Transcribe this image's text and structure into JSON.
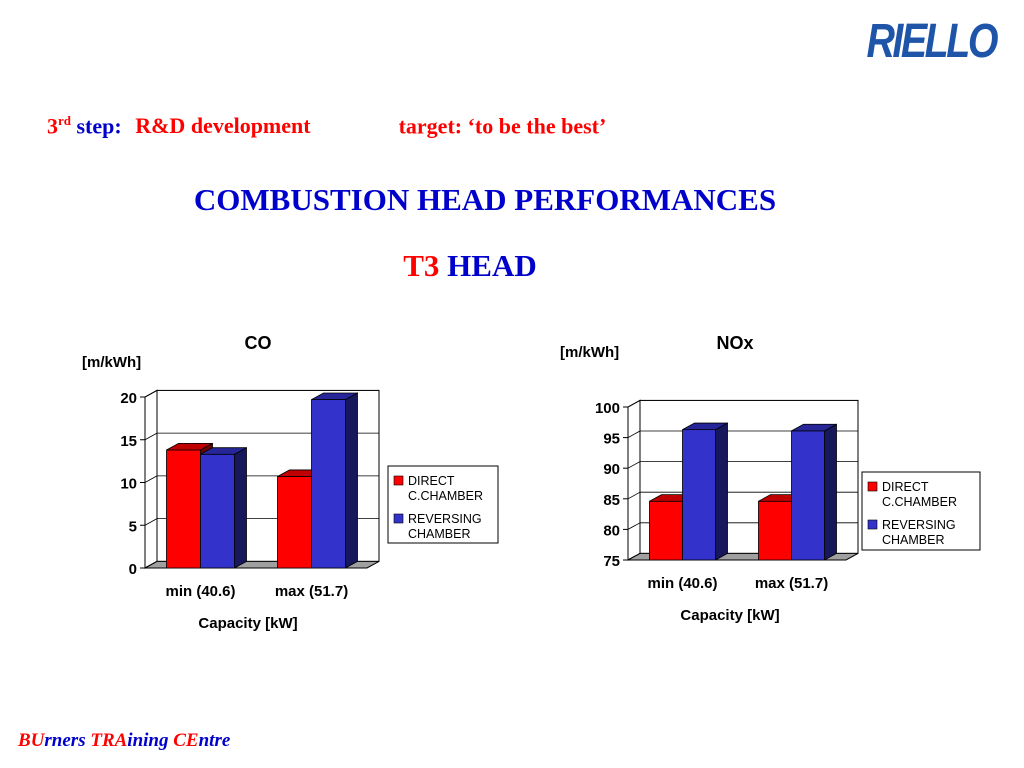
{
  "colors": {
    "red": "#ff0000",
    "navy": "#0000cc",
    "blue": "#3333cc",
    "logo": "#1f55a8",
    "direct": "#ff0000",
    "reversing": "#3333cc"
  },
  "logo": {
    "text": "RIELLO"
  },
  "header": {
    "step_number": "3",
    "step_suffix": "rd",
    "step_label": "step:",
    "step_title": "R&D development",
    "target": "target: ‘to be the best’"
  },
  "title": {
    "main": "COMBUSTION HEAD PERFORMANCES",
    "head_code": "T3",
    "head_word": "HEAD"
  },
  "footer": {
    "part1_caps": "BU",
    "part1_rest": "rners ",
    "part2_caps": "TRA",
    "part2_rest": "ining ",
    "part3_caps": "CE",
    "part3_rest": "ntre"
  },
  "chart_data": [
    {
      "type": "bar",
      "title": "CO",
      "ylabel": "[m/kWh]",
      "xlabel": "Capacity [kW]",
      "categories": [
        "min (40.6)",
        "max (51.7)"
      ],
      "ylim": [
        0,
        20
      ],
      "yticks": [
        0,
        5,
        10,
        15,
        20
      ],
      "grid": true,
      "legend_position": "right",
      "series": [
        {
          "name": "DIRECT C.CHAMBER",
          "label_lines": [
            "DIRECT",
            "C.CHAMBER"
          ],
          "color": "#ff0000",
          "values": [
            13.8,
            10.7
          ]
        },
        {
          "name": "REVERSING CHAMBER",
          "label_lines": [
            "REVERSING",
            "CHAMBER"
          ],
          "color": "#3333cc",
          "values": [
            13.3,
            19.7
          ]
        }
      ]
    },
    {
      "type": "bar",
      "title": "NOx",
      "ylabel": "[m/kWh]",
      "xlabel": "Capacity [kW]",
      "categories": [
        "min (40.6)",
        "max (51.7)"
      ],
      "ylim": [
        75,
        100
      ],
      "yticks": [
        75,
        80,
        85,
        90,
        95,
        100
      ],
      "grid": true,
      "legend_position": "right",
      "series": [
        {
          "name": "DIRECT C.CHAMBER",
          "label_lines": [
            "DIRECT",
            "C.CHAMBER"
          ],
          "color": "#ff0000",
          "values": [
            84.6,
            84.6
          ]
        },
        {
          "name": "REVERSING CHAMBER",
          "label_lines": [
            "REVERSING",
            "CHAMBER"
          ],
          "color": "#3333cc",
          "values": [
            96.3,
            96.1
          ]
        }
      ]
    }
  ]
}
